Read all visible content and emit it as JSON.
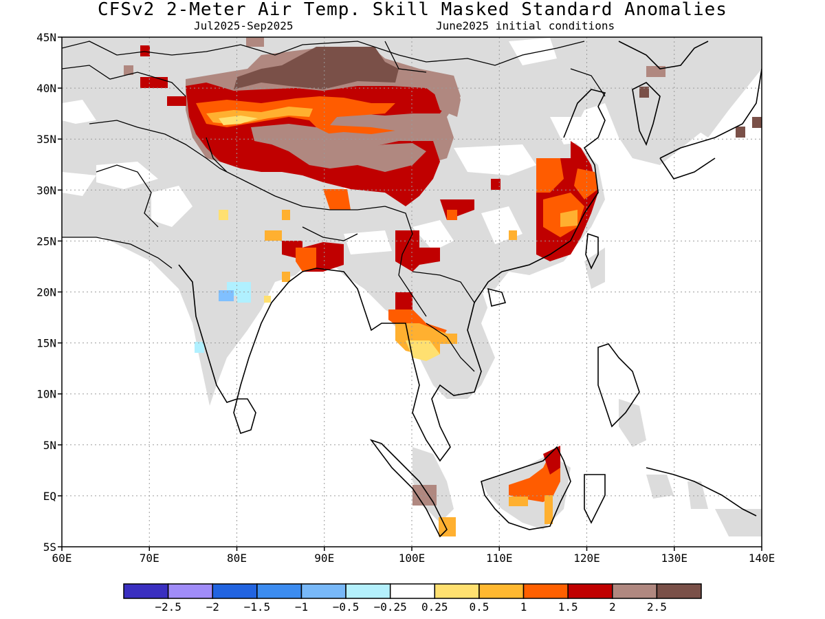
{
  "title": "CFSv2 2-Meter Air Temp. Skill Masked Standard Anomalies",
  "subtitle_left": "Jul2025-Sep2025",
  "subtitle_right": "June2025 initial conditions",
  "map": {
    "lon_range": [
      60,
      140
    ],
    "lat_range": [
      -5,
      45
    ],
    "lat_ticks": [
      "45N",
      "40N",
      "35N",
      "30N",
      "25N",
      "20N",
      "15N",
      "10N",
      "5N",
      "EQ",
      "5S"
    ],
    "lon_ticks": [
      "60E",
      "70E",
      "80E",
      "90E",
      "100E",
      "110E",
      "120E",
      "130E",
      "140E"
    ],
    "colors": {
      "neutral_gray": "#dcdcdc",
      "light_brown": "#b08880",
      "dark_brown": "#7a5048",
      "dark_red": "#c00000",
      "orange_red": "#ff5c00",
      "orange": "#ffb030",
      "light_yellow": "#ffe070",
      "light_cyan": "#b0f0ff",
      "light_blue": "#80c0ff"
    }
  },
  "colorbar": {
    "colors": [
      "#3a2fc0",
      "#a08cf8",
      "#2264e0",
      "#3c8cf0",
      "#78b8f8",
      "#b4f0fc",
      "#ffffff",
      "#ffe070",
      "#ffb830",
      "#ff6000",
      "#c00000",
      "#b08880",
      "#7a5048"
    ],
    "labels": [
      "-2.5",
      "-2",
      "-1.5",
      "-1",
      "-0.5",
      "-0.25",
      "0.25",
      "0.5",
      "1",
      "1.5",
      "2",
      "2.5"
    ]
  }
}
